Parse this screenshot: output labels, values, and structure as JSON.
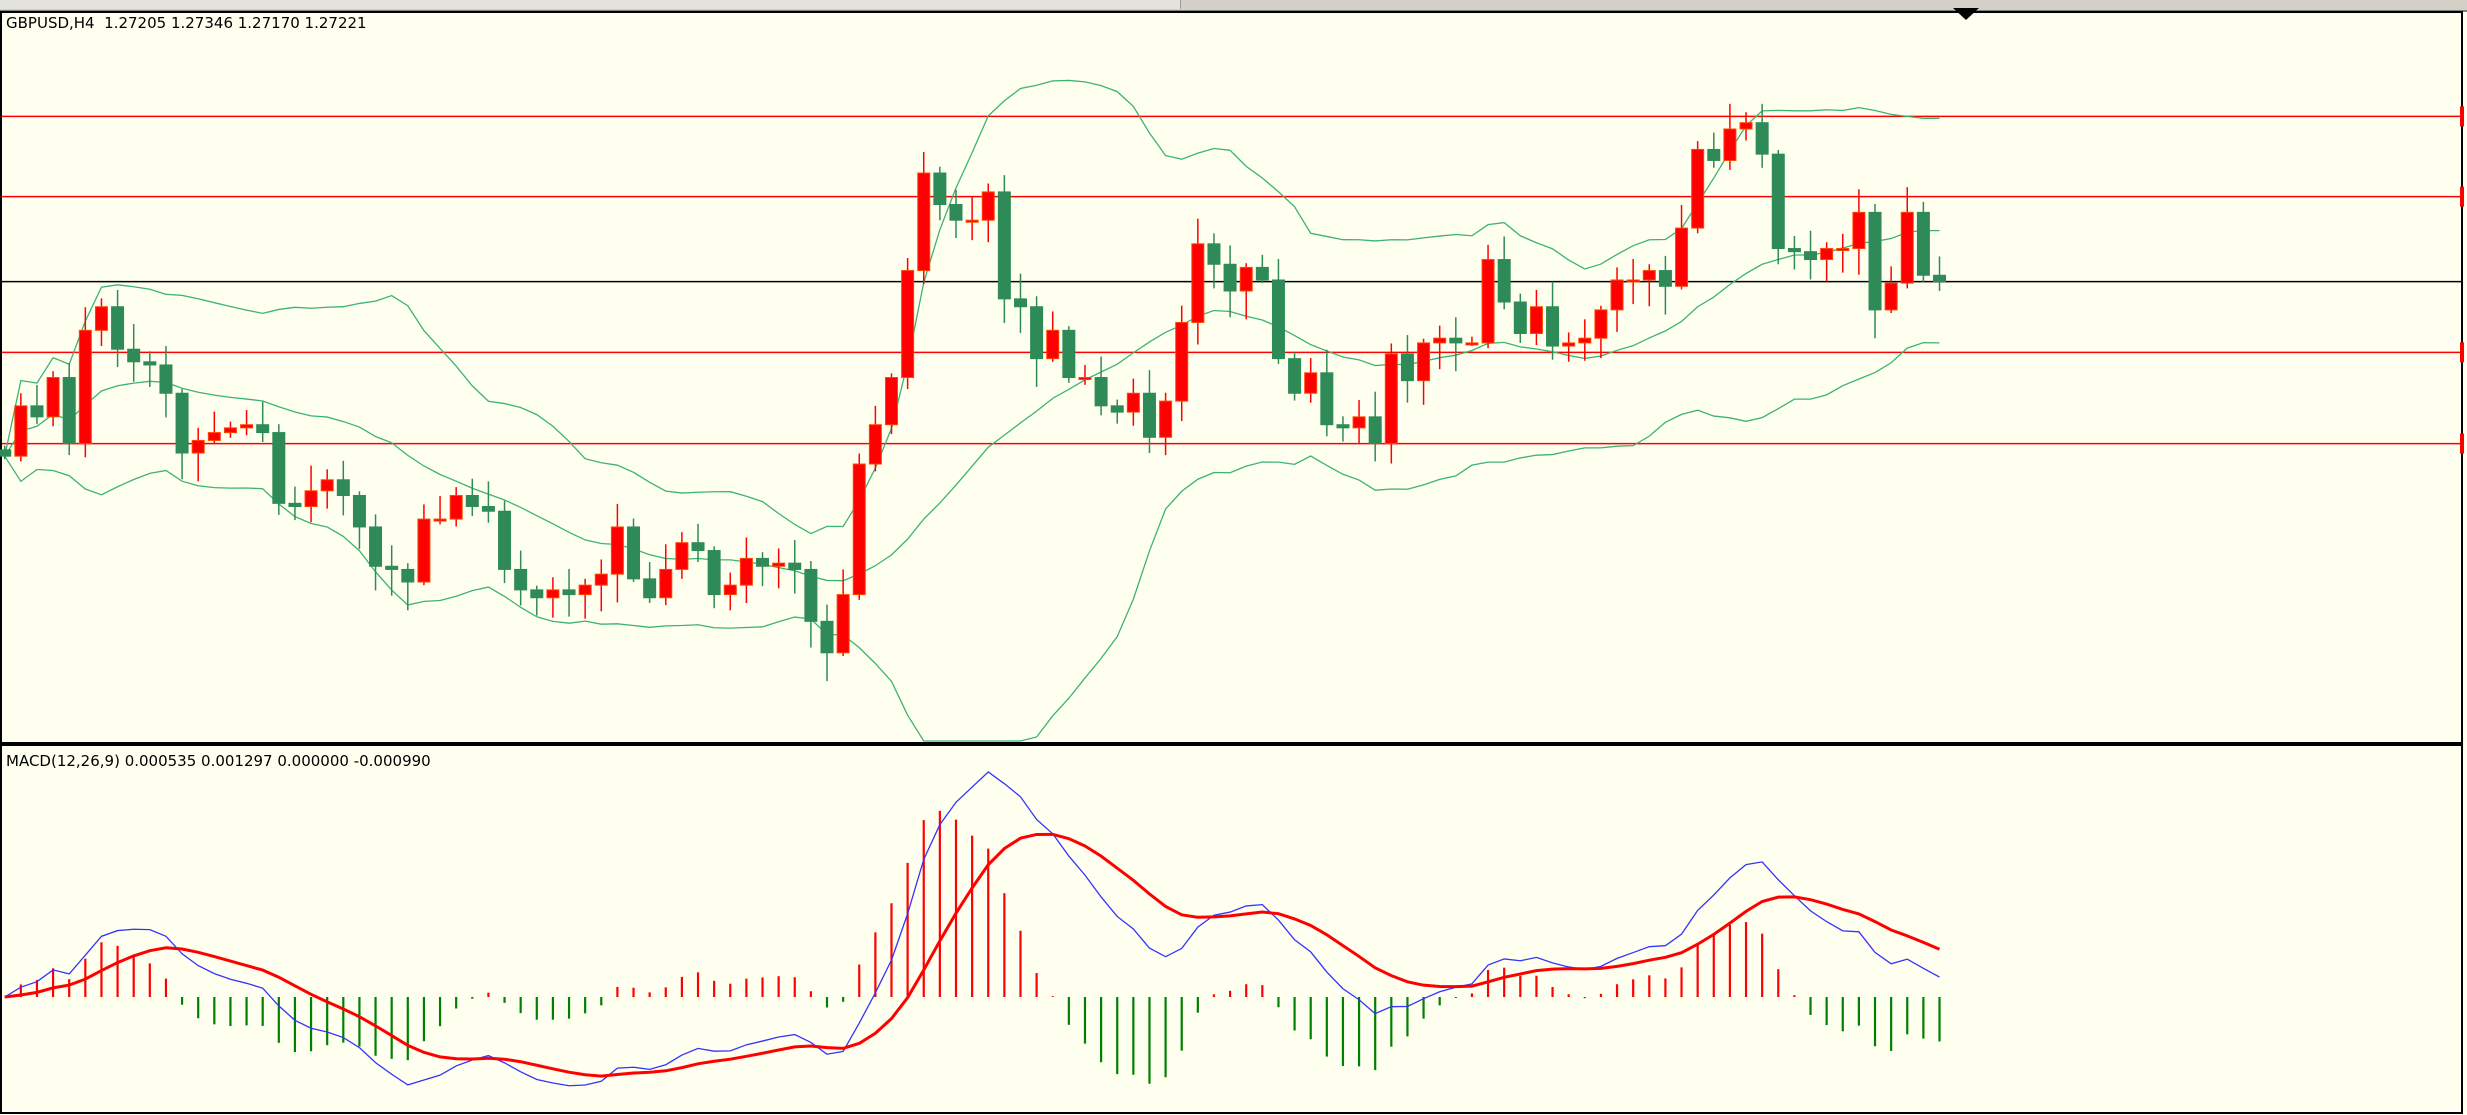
{
  "header": {
    "symbol": "GBPUSD,H4",
    "ohlc": "1.27205 1.27346 1.27170 1.27221"
  },
  "macd_panel": {
    "label": "MACD(12,26,9) 0.000535 0.001297 0.000000 -0.000990"
  },
  "colors": {
    "background": "#fffff0",
    "bull": "#ff0000",
    "bear": "#2e8b57",
    "bands": "#3cb371",
    "level": "#ff0000",
    "price_line": "#000000",
    "macd": "#3333ff",
    "signal": "#ff0000",
    "hist_pos": "#ff0000",
    "hist_neg": "#008000"
  },
  "chart_data": {
    "type": "candlestick",
    "symbol": "GBPUSD",
    "timeframe": "H4",
    "current_price": 1.27221,
    "levels": [
      1.27536,
      1.27383,
      1.27086,
      1.26912
    ],
    "indicators": {
      "bollinger": {
        "period": 20,
        "deviation": 2
      },
      "macd": {
        "fast": 12,
        "slow": 26,
        "signal": 9
      }
    },
    "first_open": 1.269,
    "close": [
      1.26888,
      1.26984,
      1.26963,
      1.27038,
      1.26912,
      1.27128,
      1.27173,
      1.27092,
      1.27068,
      1.27062,
      1.27008,
      1.26894,
      1.26918,
      1.26933,
      1.26942,
      1.26948,
      1.26933,
      1.26798,
      1.26792,
      1.26822,
      1.26843,
      1.26813,
      1.26753,
      1.26678,
      1.26672,
      1.26648,
      1.26768,
      1.26768,
      1.26813,
      1.26792,
      1.26783,
      1.26672,
      1.26633,
      1.26618,
      1.26633,
      1.26624,
      1.26642,
      1.26663,
      1.26753,
      1.26654,
      1.26618,
      1.26672,
      1.26723,
      1.26708,
      1.26624,
      1.26642,
      1.26693,
      1.26678,
      1.26684,
      1.26672,
      1.26573,
      1.26513,
      1.26624,
      1.26873,
      1.26948,
      1.27038,
      1.27242,
      1.27428,
      1.27368,
      1.27338,
      1.27338,
      1.27392,
      1.27188,
      1.27173,
      1.27074,
      1.27128,
      1.27038,
      1.27038,
      1.26984,
      1.26972,
      1.27008,
      1.26924,
      1.26993,
      1.27143,
      1.27293,
      1.27254,
      1.27203,
      1.27248,
      1.27224,
      1.27074,
      1.27008,
      1.27047,
      1.26948,
      1.26942,
      1.26963,
      1.26912,
      1.27083,
      1.27032,
      1.27104,
      1.27113,
      1.27104,
      1.27104,
      1.27263,
      1.27182,
      1.27122,
      1.27173,
      1.27098,
      1.27104,
      1.27113,
      1.27167,
      1.27224,
      1.27224,
      1.27242,
      1.27212,
      1.27323,
      1.27473,
      1.27452,
      1.27512,
      1.27524,
      1.27464,
      1.27284,
      1.27278,
      1.27263,
      1.27284,
      1.27284,
      1.27353,
      1.27167,
      1.27218,
      1.27353,
      1.27233,
      1.27221
    ]
  }
}
